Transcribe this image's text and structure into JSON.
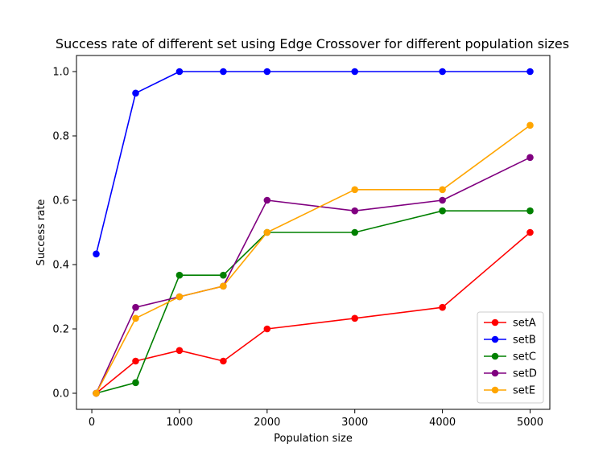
{
  "chart_data": {
    "type": "line",
    "title": "Success rate of different set using Edge Crossover for different population sizes",
    "xlabel": "Population size",
    "ylabel": "Success rate",
    "x": [
      50,
      500,
      1000,
      1500,
      2000,
      3000,
      4000,
      5000
    ],
    "xlim": [
      -175,
      5225
    ],
    "ylim": [
      -0.05,
      1.05
    ],
    "xticks": [
      0,
      1000,
      2000,
      3000,
      4000,
      5000
    ],
    "yticks": [
      0.0,
      0.2,
      0.4,
      0.6,
      0.8,
      1.0
    ],
    "xtick_labels": [
      "0",
      "1000",
      "2000",
      "3000",
      "4000",
      "5000"
    ],
    "ytick_labels": [
      "0.0",
      "0.2",
      "0.4",
      "0.6",
      "0.8",
      "1.0"
    ],
    "grid": false,
    "legend_position": "lower-right",
    "series": [
      {
        "name": "setA",
        "color": "#ff0000",
        "values": [
          0.0,
          0.1,
          0.133,
          0.1,
          0.2,
          0.233,
          0.267,
          0.5
        ]
      },
      {
        "name": "setB",
        "color": "#0000ff",
        "values": [
          0.433,
          0.933,
          1.0,
          1.0,
          1.0,
          1.0,
          1.0,
          1.0
        ]
      },
      {
        "name": "setC",
        "color": "#008000",
        "values": [
          0.0,
          0.033,
          0.367,
          0.367,
          0.5,
          0.5,
          0.567,
          0.567
        ]
      },
      {
        "name": "setD",
        "color": "#800080",
        "values": [
          0.0,
          0.267,
          0.3,
          0.333,
          0.6,
          0.567,
          0.6,
          0.733
        ]
      },
      {
        "name": "setE",
        "color": "#ffa500",
        "values": [
          0.0,
          0.233,
          0.3,
          0.333,
          0.5,
          0.633,
          0.633,
          0.833
        ]
      }
    ]
  }
}
